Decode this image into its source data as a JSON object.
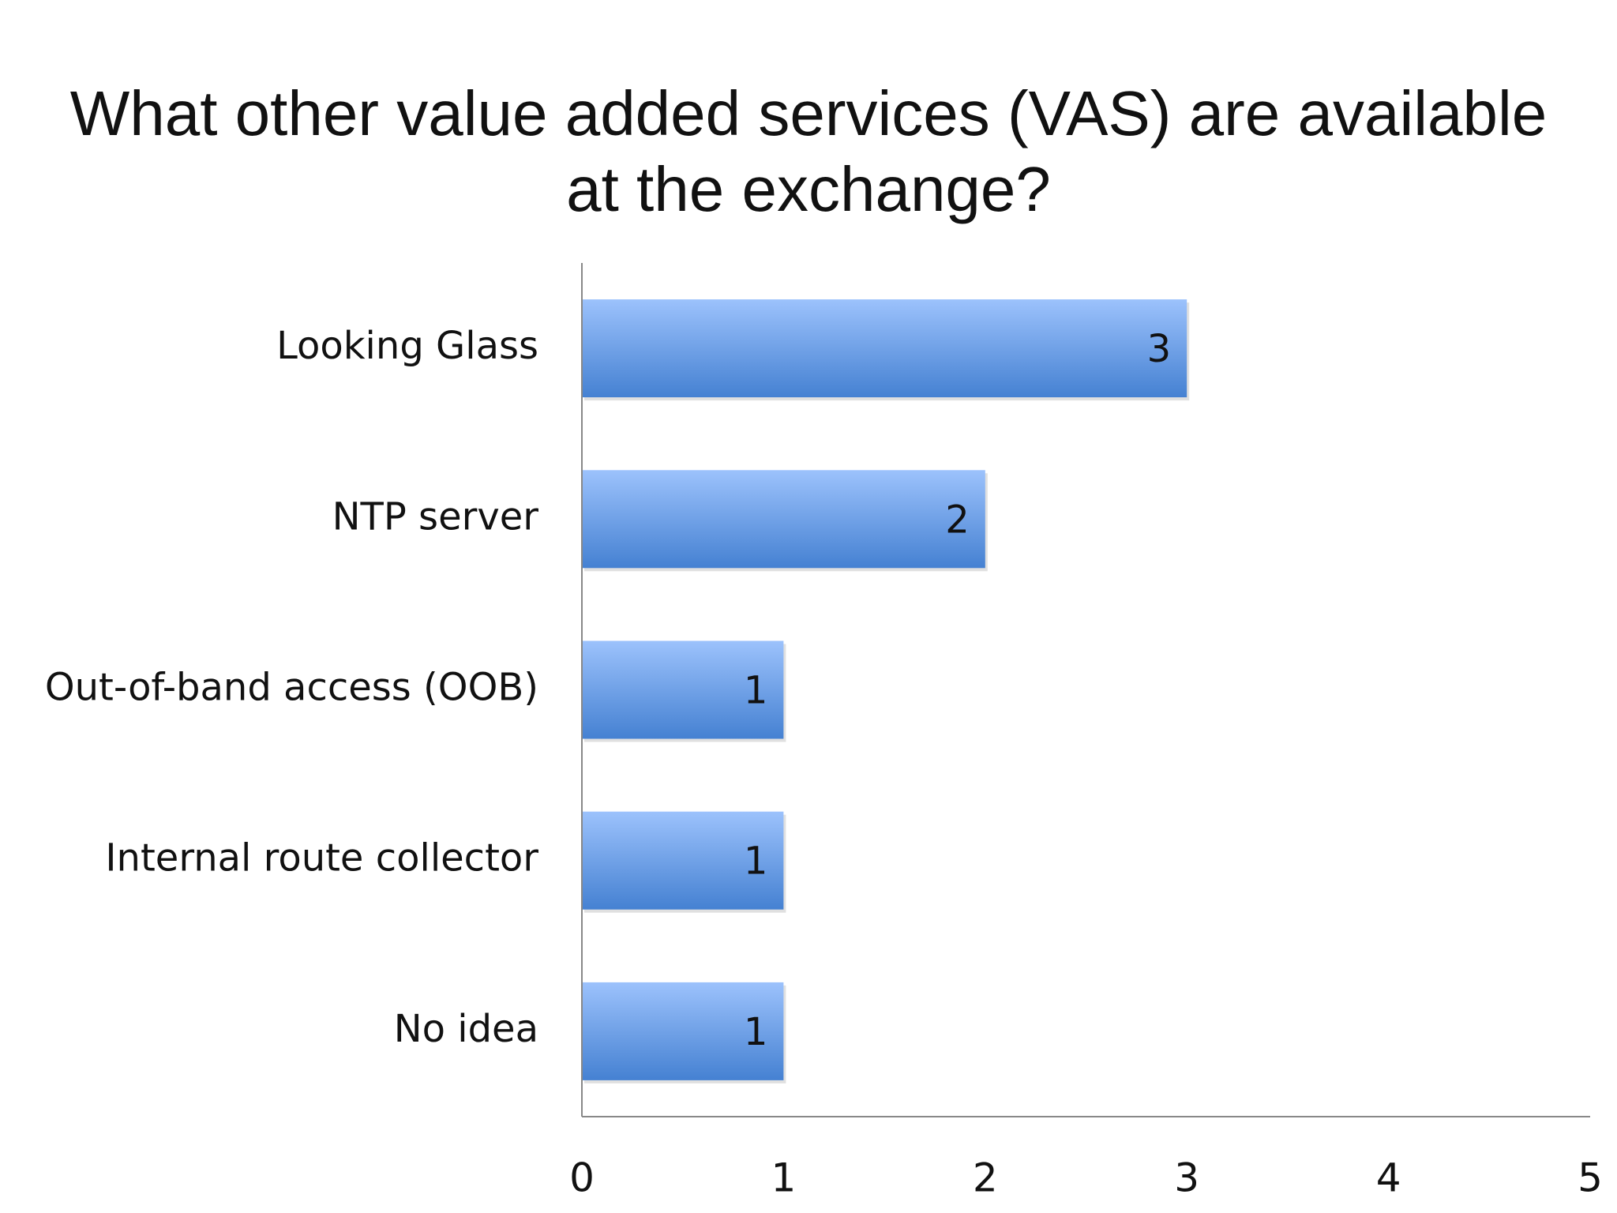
{
  "colors": {
    "bar_top": "#9cc2fc",
    "bar_bottom": "#4581d2",
    "axis": "#888888",
    "text": "#111111"
  },
  "chart_data": {
    "type": "bar",
    "orientation": "horizontal",
    "title_lines": [
      "What other value added services (VAS) are available",
      "at the exchange?"
    ],
    "categories": [
      "Looking Glass",
      "NTP server",
      "Out-of-band access (OOB)",
      "Internal route collector",
      "No idea"
    ],
    "values": [
      3,
      2,
      1,
      1,
      1
    ],
    "data_labels": [
      "3",
      "2",
      "1",
      "1",
      "1"
    ],
    "xlim": [
      0,
      5
    ],
    "xticks": [
      "0",
      "1",
      "2",
      "3",
      "4",
      "5"
    ],
    "xlabel": "",
    "ylabel": "",
    "grid": false,
    "legend": "none"
  }
}
